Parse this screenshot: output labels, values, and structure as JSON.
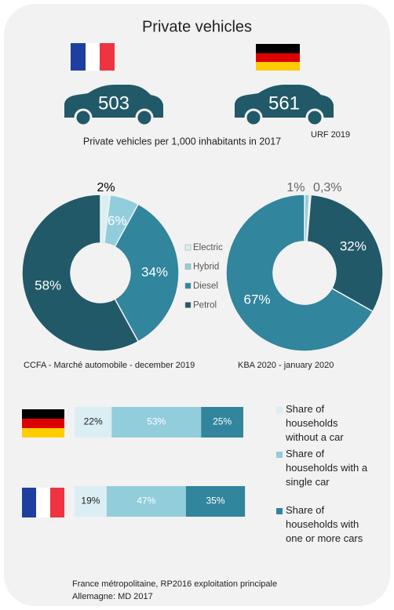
{
  "title": "Private vehicles",
  "cars": {
    "values": [
      503,
      561
    ],
    "caption": "Private vehicles per 1,000 inhabitants in 2017",
    "source": "URF 2019"
  },
  "chart_data": [
    {
      "type": "donut",
      "categories": [
        "Electric",
        "Hybrid",
        "Diesel",
        "Petrol"
      ],
      "values": [
        2,
        6,
        34,
        58
      ],
      "value_labels": [
        "2%",
        "6%",
        "34%",
        "58%"
      ],
      "colors": [
        "#dbeef3",
        "#92cddc",
        "#31859c",
        "#215968"
      ],
      "source": "CCFA - Marché automobile - december 2019"
    },
    {
      "type": "donut",
      "values": [
        1,
        0.3,
        32,
        67
      ],
      "value_labels": [
        "1%",
        "0,3%",
        "32%",
        "67%"
      ],
      "colors": [
        "#92cddc",
        "#dbeef3",
        "#215968",
        "#31859c"
      ],
      "source": "KBA 2020 - january 2020"
    },
    {
      "type": "stacked-bar",
      "categories": [
        null,
        null
      ],
      "xlim": [
        0,
        100
      ],
      "series": [
        {
          "name": "Share of households without a car",
          "color": "#dbeef3",
          "values": [
            22,
            19
          ],
          "value_labels": [
            "22%",
            "19%"
          ]
        },
        {
          "name": "Share of households with a single car",
          "color": "#92cddc",
          "values": [
            53,
            47
          ],
          "value_labels": [
            "53%",
            "47%"
          ]
        },
        {
          "name": "Share of households with one or more cars",
          "color": "#31859c",
          "values": [
            25,
            35
          ],
          "value_labels": [
            "25%",
            "35%"
          ]
        }
      ]
    }
  ],
  "footer": [
    "France métropolitaine, RP2016 exploitation principale",
    "Allemagne: MD 2017"
  ]
}
